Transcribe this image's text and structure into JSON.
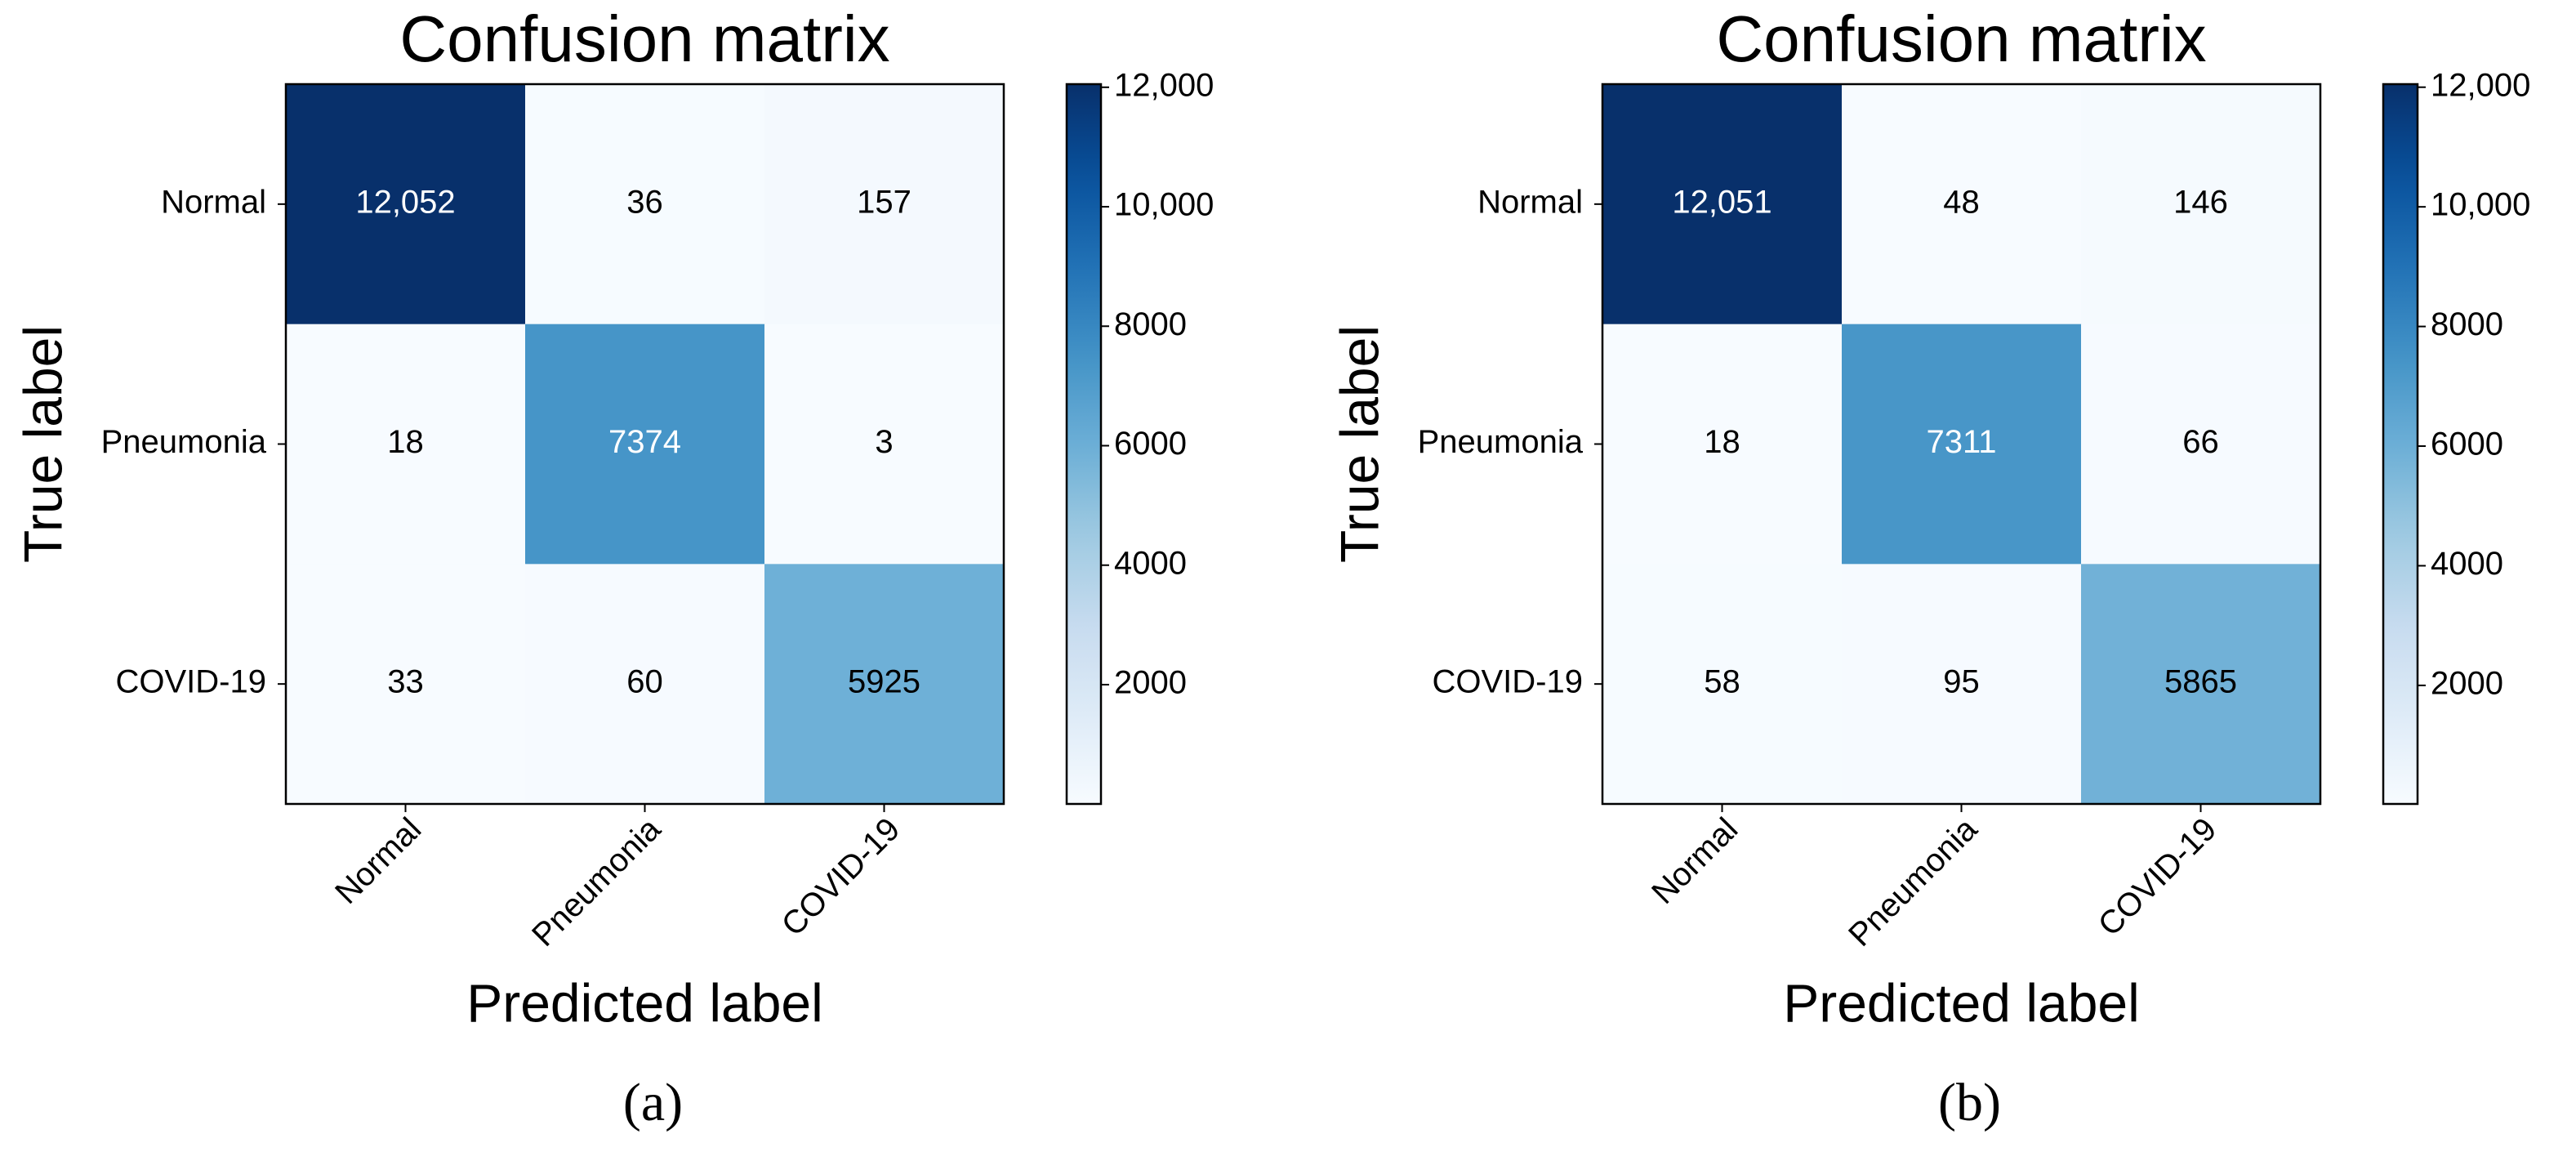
{
  "chart_data": [
    {
      "type": "heatmap",
      "title": "Confusion matrix",
      "xlabel": "Predicted label",
      "ylabel": "True label",
      "caption": "(a)",
      "x": [
        "Normal",
        "Pneumonia",
        "COVID-19"
      ],
      "y": [
        "Normal",
        "Pneumonia",
        "COVID-19"
      ],
      "values": [
        [
          12052,
          36,
          157
        ],
        [
          18,
          7374,
          3
        ],
        [
          33,
          60,
          5925
        ]
      ],
      "value_labels": [
        [
          "12,052",
          "36",
          "157"
        ],
        [
          "18",
          "7374",
          "3"
        ],
        [
          "33",
          "60",
          "5925"
        ]
      ],
      "colormap": "Blues",
      "clim": [
        3,
        12052
      ],
      "cticks": [
        2000,
        4000,
        6000,
        8000,
        {
          "value": 10000,
          "label": "10,000"
        },
        {
          "value": 12000,
          "label": "12,000"
        }
      ]
    },
    {
      "type": "heatmap",
      "title": "Confusion matrix",
      "xlabel": "Predicted label",
      "ylabel": "True label",
      "caption": "(b)",
      "x": [
        "Normal",
        "Pneumonia",
        "COVID-19"
      ],
      "y": [
        "Normal",
        "Pneumonia",
        "COVID-19"
      ],
      "values": [
        [
          12051,
          48,
          146
        ],
        [
          18,
          7311,
          66
        ],
        [
          58,
          95,
          5865
        ]
      ],
      "value_labels": [
        [
          "12,051",
          "48",
          "146"
        ],
        [
          "18",
          "7311",
          "66"
        ],
        [
          "58",
          "95",
          "5865"
        ]
      ],
      "colormap": "Blues",
      "clim": [
        18,
        12051
      ],
      "cticks": [
        2000,
        4000,
        6000,
        8000,
        {
          "value": 10000,
          "label": "10,000"
        },
        {
          "value": 12000,
          "label": "12,000"
        }
      ]
    }
  ]
}
